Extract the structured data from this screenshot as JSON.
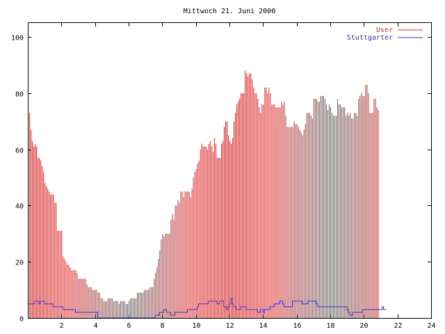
{
  "chart_data": {
    "type": "bar",
    "title": "Mittwoch 21. Juni 2000",
    "xlabel": "",
    "ylabel": "",
    "xlim": [
      0,
      24
    ],
    "ylim": [
      0,
      105
    ],
    "x_ticks": [
      "2",
      "4",
      "6",
      "8",
      "10",
      "12",
      "14",
      "16",
      "18",
      "20",
      "22",
      "24"
    ],
    "x_tick_values": [
      2,
      4,
      6,
      8,
      10,
      12,
      14,
      16,
      18,
      20,
      22,
      24
    ],
    "y_ticks": [
      "0",
      "20",
      "40",
      "60",
      "80",
      "100"
    ],
    "y_tick_values": [
      0,
      20,
      40,
      60,
      80,
      100
    ],
    "grid": false,
    "legend_position": "top-right",
    "interval_minutes": 5,
    "series": [
      {
        "name": "User",
        "style": "impulses",
        "color": "#cc3333",
        "values": [
          68,
          73,
          67,
          63,
          61,
          62,
          61,
          57,
          57,
          56,
          54,
          52,
          48,
          47,
          46,
          45,
          44,
          44,
          44,
          41,
          41,
          31,
          31,
          31,
          31,
          22,
          21,
          20,
          19,
          19,
          18,
          17,
          17,
          17,
          17,
          16,
          14,
          14,
          14,
          14,
          14,
          14,
          12,
          11,
          11,
          11,
          10,
          10,
          10,
          10,
          9,
          9,
          7,
          7,
          6,
          6,
          6,
          7,
          7,
          7,
          7,
          6,
          6,
          6,
          6,
          5,
          6,
          6,
          6,
          6,
          5,
          5,
          6,
          7,
          7,
          7,
          7,
          7,
          9,
          9,
          9,
          9,
          9,
          10,
          10,
          10,
          10,
          11,
          11,
          11,
          14,
          16,
          18,
          21,
          24,
          28,
          30,
          29,
          30,
          30,
          30,
          30,
          35,
          37,
          35,
          40,
          40,
          42,
          41,
          45,
          45,
          43,
          45,
          45,
          45,
          45,
          43,
          46,
          50,
          52,
          53,
          55,
          56,
          60,
          62,
          61,
          61,
          61,
          60,
          62,
          63,
          61,
          59,
          64,
          62,
          57,
          57,
          57,
          62,
          63,
          68,
          70,
          70,
          65,
          63,
          62,
          64,
          70,
          73,
          76,
          77,
          78,
          80,
          80,
          80,
          88,
          87,
          86,
          87,
          87,
          85,
          82,
          80,
          80,
          78,
          75,
          73,
          76,
          76,
          82,
          82,
          80,
          82,
          80,
          76,
          76,
          76,
          75,
          75,
          75,
          75,
          77,
          76,
          77,
          72,
          68,
          68,
          68,
          68,
          68,
          70,
          69,
          69,
          68,
          67,
          66,
          65,
          67,
          69,
          73,
          73,
          73,
          72,
          71,
          78,
          78,
          78,
          77,
          77,
          79,
          79,
          79,
          78,
          76,
          74,
          76,
          75,
          73,
          72,
          72,
          72,
          78,
          76,
          76,
          75,
          75,
          75,
          72,
          73,
          72,
          73,
          71,
          71,
          73,
          73,
          72,
          78,
          79,
          80,
          79,
          79,
          83,
          83,
          80,
          73,
          73,
          73,
          78,
          78,
          75,
          74
        ]
      },
      {
        "name": "Stuttgarter",
        "style": "steps",
        "color": "#3333cc",
        "values": [
          5,
          5,
          5,
          5,
          5,
          6,
          6,
          6,
          5,
          6,
          6,
          6,
          5,
          5,
          5,
          5,
          5,
          5,
          4,
          4,
          4,
          4,
          4,
          4,
          4,
          3,
          3,
          3,
          3,
          3,
          3,
          3,
          3,
          3,
          2,
          2,
          2,
          2,
          2,
          2,
          2,
          2,
          2,
          2,
          2,
          2,
          2,
          2,
          2,
          2,
          0,
          0,
          0,
          0,
          0,
          0,
          0,
          0,
          0,
          0,
          0,
          0,
          0,
          0,
          0,
          0,
          0,
          0,
          0,
          0,
          0,
          0,
          0,
          0,
          0,
          0,
          0,
          0,
          0,
          0,
          0,
          0,
          0,
          0,
          0,
          0,
          0,
          0,
          0,
          0,
          0,
          1,
          1,
          1,
          2,
          2,
          2,
          3,
          3,
          2,
          2,
          2,
          1,
          1,
          1,
          2,
          2,
          2,
          2,
          2,
          2,
          2,
          2,
          2,
          3,
          3,
          3,
          3,
          3,
          3,
          3,
          4,
          5,
          5,
          5,
          5,
          5,
          5,
          5,
          6,
          6,
          6,
          6,
          6,
          6,
          5,
          5,
          6,
          6,
          6,
          4,
          4,
          3,
          4,
          5,
          7,
          5,
          4,
          4,
          3,
          3,
          3,
          4,
          4,
          4,
          4,
          3,
          3,
          3,
          3,
          3,
          3,
          3,
          3,
          2,
          2,
          3,
          3,
          2,
          3,
          3,
          3,
          3,
          4,
          4,
          4,
          5,
          5,
          5,
          5,
          6,
          6,
          5,
          4,
          4,
          4,
          4,
          4,
          4,
          6,
          6,
          6,
          6,
          6,
          6,
          6,
          5,
          5,
          5,
          5,
          6,
          6,
          6,
          6,
          6,
          6,
          5,
          4,
          4,
          4,
          4,
          4,
          4,
          4,
          4,
          4,
          4,
          4,
          4,
          4,
          4,
          4,
          4,
          4,
          4,
          4,
          4,
          4,
          3,
          2,
          1,
          1,
          2,
          2,
          2,
          2,
          2,
          2,
          2,
          3,
          3,
          3,
          3,
          3,
          3,
          3,
          3,
          3,
          3,
          3,
          3,
          3,
          3,
          4,
          3,
          3
        ]
      }
    ]
  }
}
